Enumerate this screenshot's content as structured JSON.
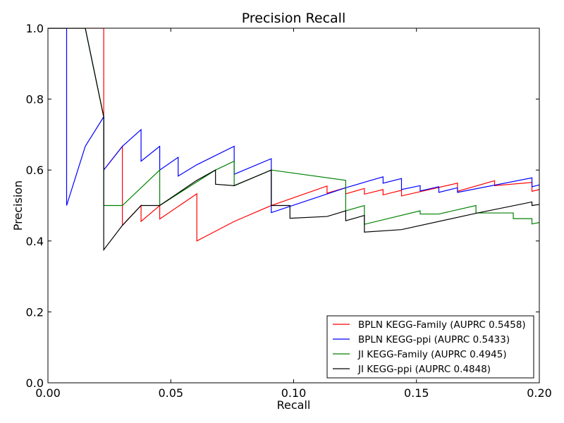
{
  "chart_data": {
    "type": "line",
    "title": "Precision Recall",
    "xlabel": "Recall",
    "ylabel": "Precision",
    "xlim": [
      0.0,
      0.2
    ],
    "ylim": [
      0.0,
      1.0
    ],
    "x_ticks": [
      "0.00",
      "0.05",
      "0.10",
      "0.15",
      "0.20"
    ],
    "y_ticks": [
      "0.0",
      "0.2",
      "0.4",
      "0.6",
      "0.8",
      "1.0"
    ],
    "grid": false,
    "legend_position": "lower-right",
    "series": [
      {
        "name": "BPLN KEGG-Family (AUPRC 0.5458)",
        "color": "#ff0000",
        "points": [
          [
            0.0,
            1.0
          ],
          [
            0.0227,
            1.0
          ],
          [
            0.0227,
            0.75
          ],
          [
            0.0227,
            0.6
          ],
          [
            0.0303,
            0.667
          ],
          [
            0.0303,
            0.444
          ],
          [
            0.0379,
            0.5
          ],
          [
            0.0379,
            0.455
          ],
          [
            0.0455,
            0.5
          ],
          [
            0.0455,
            0.462
          ],
          [
            0.0606,
            0.533
          ],
          [
            0.0606,
            0.4
          ],
          [
            0.0758,
            0.455
          ],
          [
            0.0909,
            0.5
          ],
          [
            0.1136,
            0.555
          ],
          [
            0.1136,
            0.535
          ],
          [
            0.1212,
            0.55
          ],
          [
            0.1212,
            0.533
          ],
          [
            0.1288,
            0.548
          ],
          [
            0.1288,
            0.532
          ],
          [
            0.1364,
            0.545
          ],
          [
            0.1364,
            0.53
          ],
          [
            0.1439,
            0.543
          ],
          [
            0.1439,
            0.527
          ],
          [
            0.1667,
            0.563
          ],
          [
            0.1667,
            0.54
          ],
          [
            0.1818,
            0.57
          ],
          [
            0.1818,
            0.556
          ],
          [
            0.197,
            0.565
          ],
          [
            0.197,
            0.54
          ],
          [
            0.2,
            0.545
          ]
        ]
      },
      {
        "name": "BPLN KEGG-ppi (AUPRC 0.5433)",
        "color": "#0000ff",
        "points": [
          [
            0.0,
            1.0
          ],
          [
            0.0076,
            1.0
          ],
          [
            0.0076,
            0.5
          ],
          [
            0.0152,
            0.667
          ],
          [
            0.0227,
            0.75
          ],
          [
            0.0227,
            0.6
          ],
          [
            0.0303,
            0.667
          ],
          [
            0.0379,
            0.714
          ],
          [
            0.0379,
            0.625
          ],
          [
            0.0455,
            0.667
          ],
          [
            0.0455,
            0.6
          ],
          [
            0.053,
            0.636
          ],
          [
            0.053,
            0.583
          ],
          [
            0.0606,
            0.615
          ],
          [
            0.0758,
            0.667
          ],
          [
            0.0758,
            0.588
          ],
          [
            0.0909,
            0.632
          ],
          [
            0.0909,
            0.48
          ],
          [
            0.1212,
            0.55
          ],
          [
            0.1364,
            0.581
          ],
          [
            0.1364,
            0.563
          ],
          [
            0.1439,
            0.576
          ],
          [
            0.1439,
            0.545
          ],
          [
            0.1515,
            0.556
          ],
          [
            0.1515,
            0.541
          ],
          [
            0.1591,
            0.553
          ],
          [
            0.1591,
            0.537
          ],
          [
            0.1667,
            0.55
          ],
          [
            0.1667,
            0.537
          ],
          [
            0.197,
            0.578
          ],
          [
            0.197,
            0.553
          ],
          [
            0.2,
            0.558
          ]
        ]
      },
      {
        "name": "JI KEGG-Family (AUPRC 0.4945)",
        "color": "#008000",
        "points": [
          [
            0.0,
            1.0
          ],
          [
            0.0152,
            1.0
          ],
          [
            0.0227,
            0.75
          ],
          [
            0.0227,
            0.5
          ],
          [
            0.0303,
            0.5
          ],
          [
            0.0455,
            0.6
          ],
          [
            0.0455,
            0.5
          ],
          [
            0.0682,
            0.6
          ],
          [
            0.0758,
            0.625
          ],
          [
            0.0758,
            0.556
          ],
          [
            0.0909,
            0.6
          ],
          [
            0.1212,
            0.571
          ],
          [
            0.1212,
            0.485
          ],
          [
            0.1288,
            0.5
          ],
          [
            0.1288,
            0.447
          ],
          [
            0.1515,
            0.485
          ],
          [
            0.1515,
            0.476
          ],
          [
            0.1591,
            0.476
          ],
          [
            0.1742,
            0.5
          ],
          [
            0.1742,
            0.479
          ],
          [
            0.1894,
            0.479
          ],
          [
            0.1894,
            0.463
          ],
          [
            0.197,
            0.463
          ],
          [
            0.197,
            0.448
          ],
          [
            0.2,
            0.452
          ]
        ]
      },
      {
        "name": "JI KEGG-ppi (AUPRC 0.4848)",
        "color": "#000000",
        "points": [
          [
            0.0,
            1.0
          ],
          [
            0.0152,
            1.0
          ],
          [
            0.0227,
            0.75
          ],
          [
            0.0227,
            0.375
          ],
          [
            0.0303,
            0.444
          ],
          [
            0.0379,
            0.5
          ],
          [
            0.0455,
            0.5
          ],
          [
            0.0606,
            0.571
          ],
          [
            0.0682,
            0.6
          ],
          [
            0.0682,
            0.56
          ],
          [
            0.0758,
            0.556
          ],
          [
            0.0909,
            0.6
          ],
          [
            0.0909,
            0.5
          ],
          [
            0.0985,
            0.5
          ],
          [
            0.0985,
            0.464
          ],
          [
            0.1136,
            0.469
          ],
          [
            0.1212,
            0.485
          ],
          [
            0.1212,
            0.457
          ],
          [
            0.1288,
            0.472
          ],
          [
            0.1288,
            0.425
          ],
          [
            0.1439,
            0.432
          ],
          [
            0.1742,
            0.478
          ],
          [
            0.197,
            0.51
          ],
          [
            0.197,
            0.5
          ],
          [
            0.2,
            0.503
          ]
        ]
      }
    ]
  }
}
